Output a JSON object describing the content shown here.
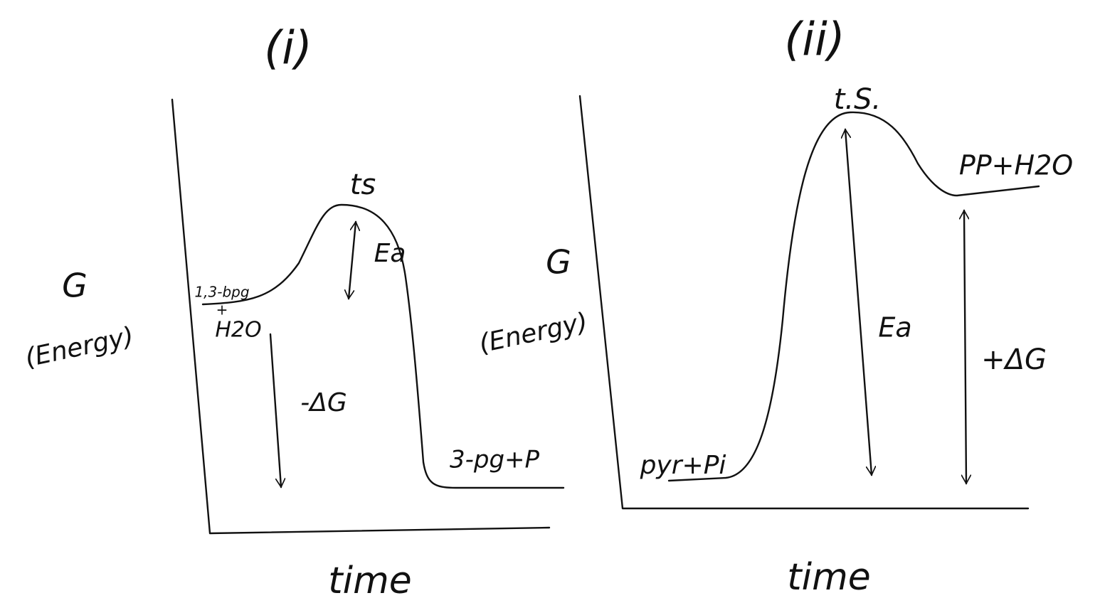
{
  "panels": [
    {
      "label": "(i)",
      "y_axis_label": "G",
      "y_axis_sublabel": "(Energy)",
      "x_axis_label": "time",
      "transition_state": "ts",
      "activation_energy": "Ea",
      "reactants": [
        "1,3-bpg",
        "+",
        "H2O"
      ],
      "free_energy_change": "-ΔG",
      "products": "3-pg+P"
    },
    {
      "label": "(ii)",
      "y_axis_label": "G",
      "y_axis_sublabel": "(Energy)",
      "x_axis_label": "time",
      "transition_state": "t.S.",
      "activation_energy": "Ea",
      "reactants": [
        "pyr+Pi"
      ],
      "free_energy_change": "+ΔG",
      "products": "PP+H2O"
    }
  ]
}
